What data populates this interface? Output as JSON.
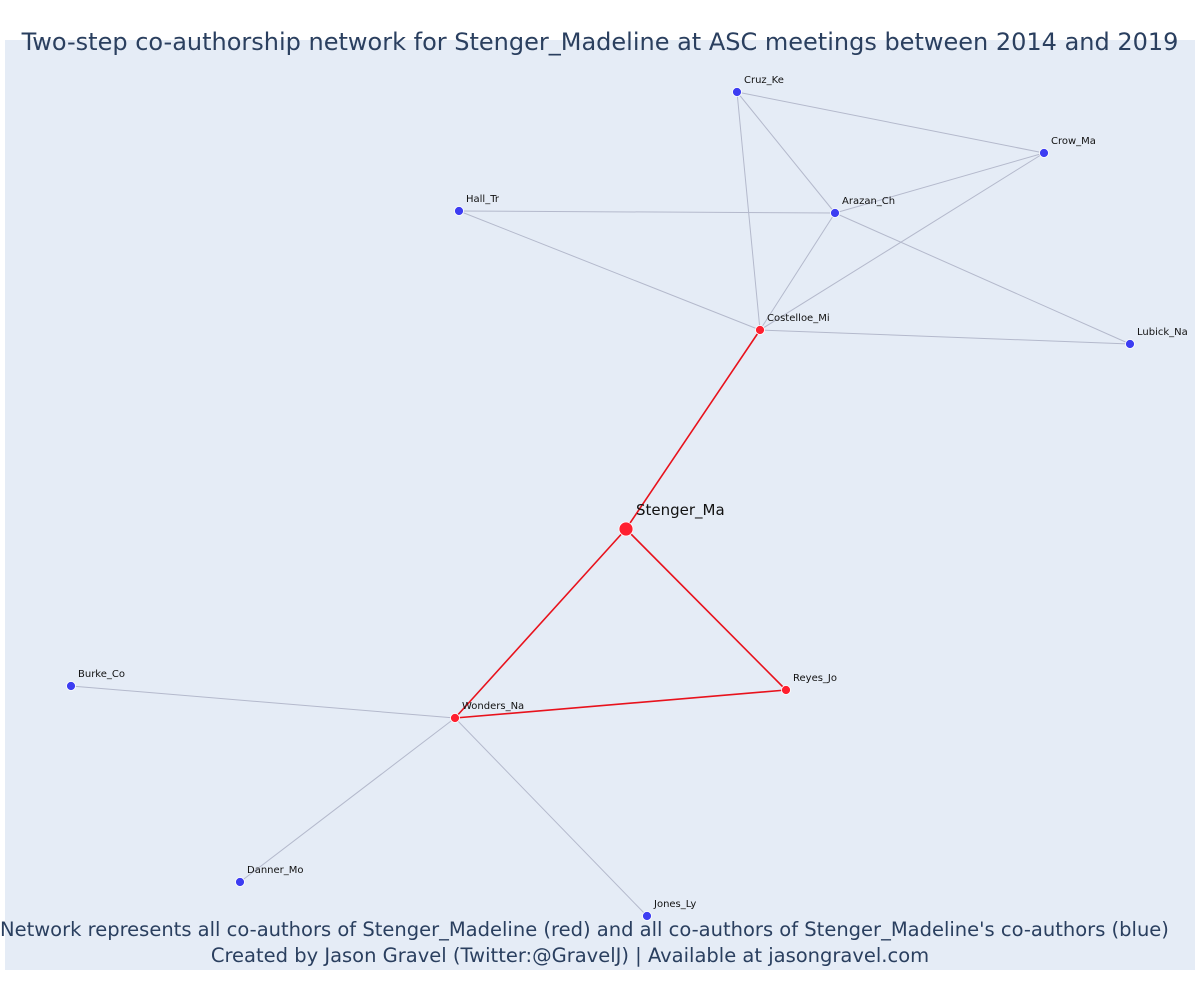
{
  "title": "Two-step co-authorship network for Stenger_Madeline at ASC meetings between 2014 and 2019",
  "caption": {
    "line1": "Network represents all co-authors of Stenger_Madeline (red) and all co-authors of Stenger_Madeline's co-authors (blue)",
    "line2": "Created by Jason Gravel (Twitter:@GravelJ) | Available at jasongravel.com"
  },
  "colors": {
    "background": "#e5ecf6",
    "direct": "#ff1f2f",
    "indirect": "#3d3df2",
    "direct_edge": "#e8121c",
    "indirect_edge": "#b4b9cc",
    "text": "#2a3f5f"
  },
  "network": {
    "nodes": [
      {
        "id": "Stenger_Ma",
        "group": "focal"
      },
      {
        "id": "Costelloe_Mi",
        "group": "direct"
      },
      {
        "id": "Wonders_Na",
        "group": "direct"
      },
      {
        "id": "Reyes_Jo",
        "group": "direct"
      },
      {
        "id": "Cruz_Ke",
        "group": "indirect"
      },
      {
        "id": "Crow_Ma",
        "group": "indirect"
      },
      {
        "id": "Hall_Tr",
        "group": "indirect"
      },
      {
        "id": "Arazan_Ch",
        "group": "indirect"
      },
      {
        "id": "Lubick_Na",
        "group": "indirect"
      },
      {
        "id": "Burke_Co",
        "group": "indirect"
      },
      {
        "id": "Danner_Mo",
        "group": "indirect"
      },
      {
        "id": "Jones_Ly",
        "group": "indirect"
      }
    ],
    "edges": [
      {
        "source": "Stenger_Ma",
        "target": "Costelloe_Mi",
        "type": "direct"
      },
      {
        "source": "Stenger_Ma",
        "target": "Wonders_Na",
        "type": "direct"
      },
      {
        "source": "Stenger_Ma",
        "target": "Reyes_Jo",
        "type": "direct"
      },
      {
        "source": "Wonders_Na",
        "target": "Reyes_Jo",
        "type": "direct"
      },
      {
        "source": "Costelloe_Mi",
        "target": "Cruz_Ke",
        "type": "indirect"
      },
      {
        "source": "Costelloe_Mi",
        "target": "Arazan_Ch",
        "type": "indirect"
      },
      {
        "source": "Costelloe_Mi",
        "target": "Crow_Ma",
        "type": "indirect"
      },
      {
        "source": "Costelloe_Mi",
        "target": "Hall_Tr",
        "type": "indirect"
      },
      {
        "source": "Costelloe_Mi",
        "target": "Lubick_Na",
        "type": "indirect"
      },
      {
        "source": "Cruz_Ke",
        "target": "Arazan_Ch",
        "type": "indirect"
      },
      {
        "source": "Cruz_Ke",
        "target": "Crow_Ma",
        "type": "indirect"
      },
      {
        "source": "Arazan_Ch",
        "target": "Crow_Ma",
        "type": "indirect"
      },
      {
        "source": "Arazan_Ch",
        "target": "Hall_Tr",
        "type": "indirect"
      },
      {
        "source": "Arazan_Ch",
        "target": "Lubick_Na",
        "type": "indirect"
      },
      {
        "source": "Wonders_Na",
        "target": "Burke_Co",
        "type": "indirect"
      },
      {
        "source": "Wonders_Na",
        "target": "Danner_Mo",
        "type": "indirect"
      },
      {
        "source": "Wonders_Na",
        "target": "Jones_Ly",
        "type": "indirect"
      }
    ]
  }
}
